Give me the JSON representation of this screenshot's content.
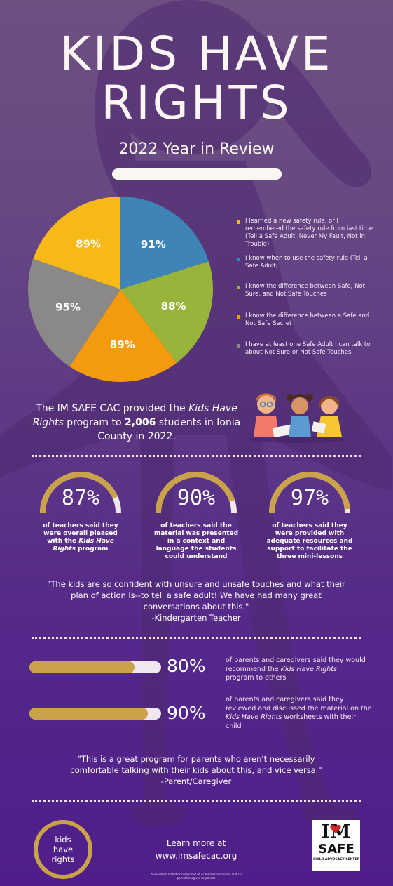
{
  "header": {
    "title_line1": "KIDS HAVE",
    "title_line2": "RIGHTS",
    "subtitle": "2022 Year in Review"
  },
  "chart_data": {
    "type": "pie",
    "slices": [
      {
        "label": "I learned a new safety rule, or I remembered the safety rule from last time (Tell a Safe Adult, Never My Fault, Not in Trouble)",
        "value": 89,
        "display": "89%",
        "color": "#f7b915"
      },
      {
        "label": "I know when to use the safety rule (Tell a Safe Adult)",
        "value": 91,
        "display": "91%",
        "color": "#3f84b6"
      },
      {
        "label": "I know the difference between Safe, Not Sure, and Not Safe Touches",
        "value": 88,
        "display": "88%",
        "color": "#99b43a"
      },
      {
        "label": "I know the difference between a Safe and Not Safe Secret",
        "value": 89,
        "display": "89%",
        "color": "#f39a0f"
      },
      {
        "label": "I have at least one Safe Adult I can talk to about Not Sure or Not Safe Touches",
        "value": 95,
        "display": "95%",
        "color": "#8b8888"
      }
    ],
    "legend_placement": "right"
  },
  "intro": {
    "part1": "The IM SAFE CAC provided the ",
    "program": "Kids Have Rights",
    "part2": " program to ",
    "count": "2,006",
    "part3": " students in Ionia County in 2022."
  },
  "teacher_stats": [
    {
      "value": 87,
      "display": "87%",
      "text_before": "of teachers said they were overall pleased with the ",
      "italic": "Kids Have Rights",
      "text_after": " program"
    },
    {
      "value": 90,
      "display": "90%",
      "text_before": "of teachers said the material was presented in a context and language the students could understand",
      "italic": "",
      "text_after": ""
    },
    {
      "value": 97,
      "display": "97%",
      "text_before": "of teachers said they were provided with adequate resources and support to facilitate the three mini-lessons",
      "italic": "",
      "text_after": ""
    }
  ],
  "quote1": {
    "text": "\"The kids are so confident with unsure and unsafe touches and what their plan of action is--to tell a safe adult! We have had many great conversations about this.\"",
    "author": "-Kindergarten Teacher"
  },
  "parent_stats": [
    {
      "value": 80,
      "display": "80%",
      "text_before": "of parents and caregivers said they would recommend the ",
      "italic": "Kids Have Rights",
      "text_after": " program to others"
    },
    {
      "value": 90,
      "display": "90%",
      "text_before": "of parents and caregivers said they reviewed and discussed the material on the ",
      "italic": "Kids Have Rights",
      "text_after": " worksheets with their child"
    }
  ],
  "quote2": {
    "text": "\"This is a great program for parents who aren't necessarily comfortable talking with their kids about this, and vice versa.\"",
    "author": "-Parent/Caregiver"
  },
  "footer": {
    "badge_line1": "kids",
    "badge_line2": "have",
    "badge_line3": "rights",
    "learn_more": "Learn more at",
    "url": "www.imsafecac.org",
    "footnote": "*Evaluation statistics comprised of 31 teacher responses and 10 parent/caregiver responses",
    "logo_im": "IM",
    "logo_safe": "SAFE",
    "logo_sub": "CHILD ADVOCACY CENTER"
  },
  "colors": {
    "gold": "#c9a24a",
    "track": "#f1e7ef"
  }
}
